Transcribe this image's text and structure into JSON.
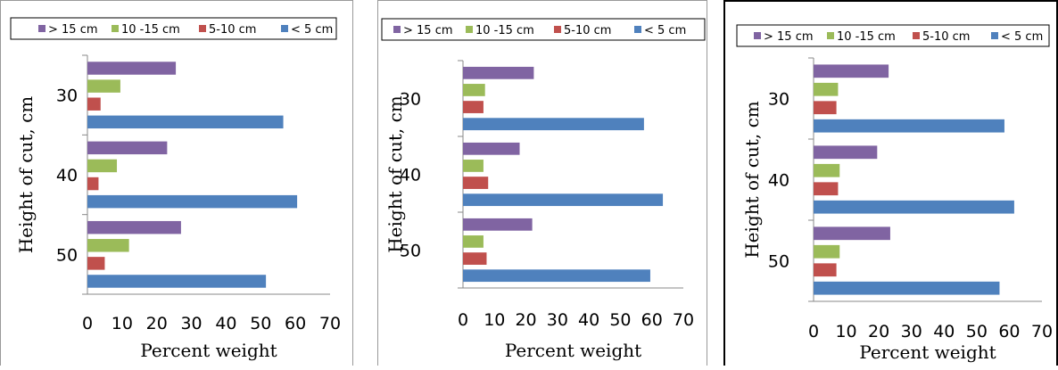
{
  "chart_data": [
    {
      "type": "bar",
      "orientation": "horizontal",
      "categories": [
        "30",
        "40",
        "50"
      ],
      "series": [
        {
          "name": "> 15 cm",
          "color": "#8064a2",
          "values": [
            25.5,
            23,
            27
          ]
        },
        {
          "name": "10 -15 cm",
          "color": "#9bbb59",
          "values": [
            9.5,
            8.5,
            12
          ]
        },
        {
          "name": "5-10 cm",
          "color": "#c0504d",
          "values": [
            3.8,
            3.2,
            5
          ]
        },
        {
          "name": "< 5 cm",
          "color": "#4f81bd",
          "values": [
            56.5,
            60.5,
            51.5
          ]
        }
      ],
      "xlabel": "Percent weight",
      "ylabel": "Height of cut, cm",
      "xticks": [
        "0",
        "10",
        "20",
        "30",
        "40",
        "50",
        "60",
        "70"
      ],
      "xlim": [
        0,
        70
      ],
      "legend_position": "top",
      "grid": false
    },
    {
      "type": "bar",
      "orientation": "horizontal",
      "categories": [
        "30",
        "40",
        "50"
      ],
      "series": [
        {
          "name": "> 15 cm",
          "color": "#8064a2",
          "values": [
            22.5,
            18,
            22
          ]
        },
        {
          "name": "10 -15 cm",
          "color": "#9bbb59",
          "values": [
            7,
            6.5,
            6.5
          ]
        },
        {
          "name": "5-10 cm",
          "color": "#c0504d",
          "values": [
            6.5,
            8,
            7.5
          ]
        },
        {
          "name": "< 5 cm",
          "color": "#4f81bd",
          "values": [
            57.5,
            63.5,
            59.5
          ]
        }
      ],
      "xlabel": "Percent weight",
      "ylabel": "Height of cut, cm",
      "xticks": [
        "0",
        "10",
        "20",
        "30",
        "40",
        "50",
        "60",
        "70"
      ],
      "xlim": [
        0,
        70
      ],
      "legend_position": "top",
      "grid": false
    },
    {
      "type": "bar",
      "orientation": "horizontal",
      "categories": [
        "30",
        "40",
        "50"
      ],
      "series": [
        {
          "name": "> 15 cm",
          "color": "#8064a2",
          "values": [
            23,
            19.5,
            23.5
          ]
        },
        {
          "name": "10 -15 cm",
          "color": "#9bbb59",
          "values": [
            7.5,
            8,
            8
          ]
        },
        {
          "name": "5-10 cm",
          "color": "#c0504d",
          "values": [
            7,
            7.5,
            7
          ]
        },
        {
          "name": "< 5 cm",
          "color": "#4f81bd",
          "values": [
            58.5,
            61.5,
            57
          ]
        }
      ],
      "xlabel": "Percent weight",
      "ylabel": "Height of cut, cm",
      "xticks": [
        "0",
        "10",
        "20",
        "30",
        "40",
        "50",
        "60",
        "70"
      ],
      "xlim": [
        0,
        70
      ],
      "legend_position": "top",
      "grid": false
    }
  ]
}
